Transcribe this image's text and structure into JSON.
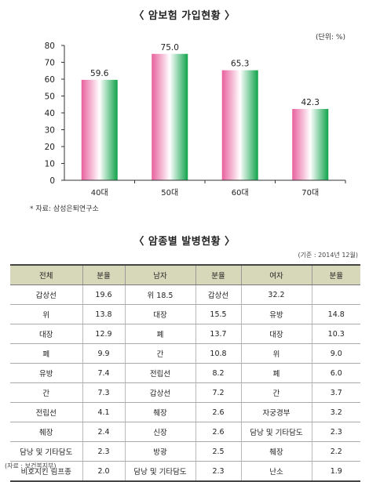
{
  "chart_data": {
    "type": "bar",
    "title": "〈 암보험 가입현황 〉",
    "unit_note": "(단위: %)",
    "categories": [
      "40대",
      "50대",
      "60대",
      "70대"
    ],
    "values": [
      59.6,
      75.0,
      65.3,
      42.3
    ],
    "value_labels": [
      "59.6",
      "75.0",
      "65.3",
      "42.3"
    ],
    "ylim": [
      0,
      80
    ],
    "yticks": [
      0,
      10,
      20,
      30,
      40,
      50,
      60,
      70,
      80
    ],
    "xlabel": "",
    "ylabel": "",
    "grid": false,
    "bar_colors": [
      "#e8609d",
      "#ffffff",
      "#10a34b"
    ],
    "source": "* 자료: 삼성은퇴연구소"
  },
  "table": {
    "title": "〈 암종별 발병현황 〉",
    "base_note": "(기준 : 2014년 12월)",
    "headers": [
      "전체",
      "분율",
      "남자",
      "분율",
      "여자",
      "분율"
    ],
    "rows": [
      [
        "갑상선",
        "19.6",
        "위 18.5",
        "갑상선",
        "32.2",
        ""
      ],
      [
        "위",
        "13.8",
        "대장",
        "15.5",
        "유방",
        "14.8"
      ],
      [
        "대장",
        "12.9",
        "폐",
        "13.7",
        "대장",
        "10.3"
      ],
      [
        "폐",
        "9.9",
        "간",
        "10.8",
        "위",
        "9.0"
      ],
      [
        "유방",
        "7.4",
        "전립선",
        "8.2",
        "폐",
        "6.0"
      ],
      [
        "간",
        "7.3",
        "갑상선",
        "7.2",
        "간",
        "3.7"
      ],
      [
        "전립선",
        "4.1",
        "췌장",
        "2.6",
        "자궁경부",
        "3.2"
      ],
      [
        "췌장",
        "2.4",
        "신장",
        "2.6",
        "담낭 및 기타담도",
        "2.3"
      ],
      [
        "담낭 및 기타담도",
        "2.3",
        "방광",
        "2.5",
        "췌장",
        "2.2"
      ],
      [
        "비호지킨 림프종",
        "2.0",
        "담낭 및 기타담도",
        "2.3",
        "난소",
        "1.9"
      ]
    ],
    "source": "(자료 : 보건복지부)",
    "header_color": "#d7d8ba"
  }
}
